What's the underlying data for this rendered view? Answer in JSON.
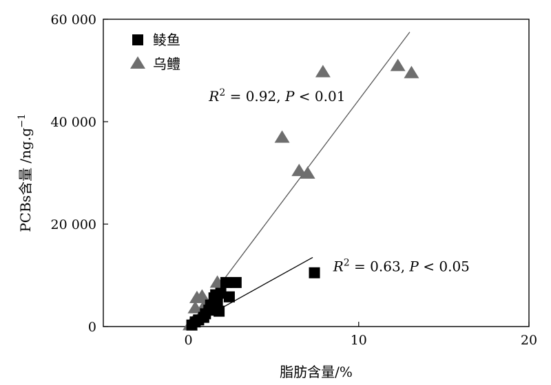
{
  "chart_data": {
    "type": "scatter",
    "xlabel": "脂肪含量/%",
    "ylabel_main": "PCBs含量 /ng.g",
    "ylabel_exp": "−1",
    "xlim": [
      -5,
      20
    ],
    "ylim": [
      0,
      60000
    ],
    "x_ticks": [
      0,
      10,
      20
    ],
    "x_tick_labels": [
      "0",
      "10",
      "20"
    ],
    "y_ticks": [
      0,
      20000,
      40000,
      60000
    ],
    "y_tick_labels": [
      "0",
      "20 000",
      "40 000",
      "60 000"
    ],
    "grid": false,
    "legend_position": "top-left",
    "series": [
      {
        "name": "鲮鱼",
        "marker": "square",
        "color": "#000000",
        "points": [
          [
            0.2,
            300
          ],
          [
            0.4,
            900
          ],
          [
            0.6,
            1300
          ],
          [
            0.9,
            1800
          ],
          [
            1.0,
            2500
          ],
          [
            1.2,
            3200
          ],
          [
            1.3,
            4200
          ],
          [
            1.5,
            5600
          ],
          [
            1.6,
            6200
          ],
          [
            1.7,
            4600
          ],
          [
            1.8,
            3000
          ],
          [
            1.9,
            6500
          ],
          [
            2.2,
            8600
          ],
          [
            2.4,
            5800
          ],
          [
            2.8,
            8600
          ],
          [
            7.4,
            10500
          ]
        ],
        "fit": {
          "x": [
            0.2,
            7.3
          ],
          "y": [
            400,
            13500
          ]
        },
        "annotation": {
          "r2": "0.63",
          "p": "0.05",
          "x": 8.5,
          "y": 10800
        }
      },
      {
        "name": "乌鳢",
        "marker": "triangle",
        "color": "#6e6e6e",
        "points": [
          [
            0.1,
            200
          ],
          [
            0.3,
            900
          ],
          [
            0.4,
            3500
          ],
          [
            0.5,
            5500
          ],
          [
            0.8,
            5800
          ],
          [
            1.0,
            4300
          ],
          [
            1.7,
            8500
          ],
          [
            5.5,
            36800
          ],
          [
            6.5,
            30300
          ],
          [
            7.0,
            29800
          ],
          [
            7.9,
            49600
          ],
          [
            12.3,
            50800
          ],
          [
            13.1,
            49400
          ]
        ],
        "fit": {
          "x": [
            0,
            13.0
          ],
          "y": [
            0,
            57500
          ]
        },
        "annotation": {
          "r2": "0.92",
          "p": "0.01",
          "x": 1.2,
          "y": 44000
        }
      }
    ]
  }
}
